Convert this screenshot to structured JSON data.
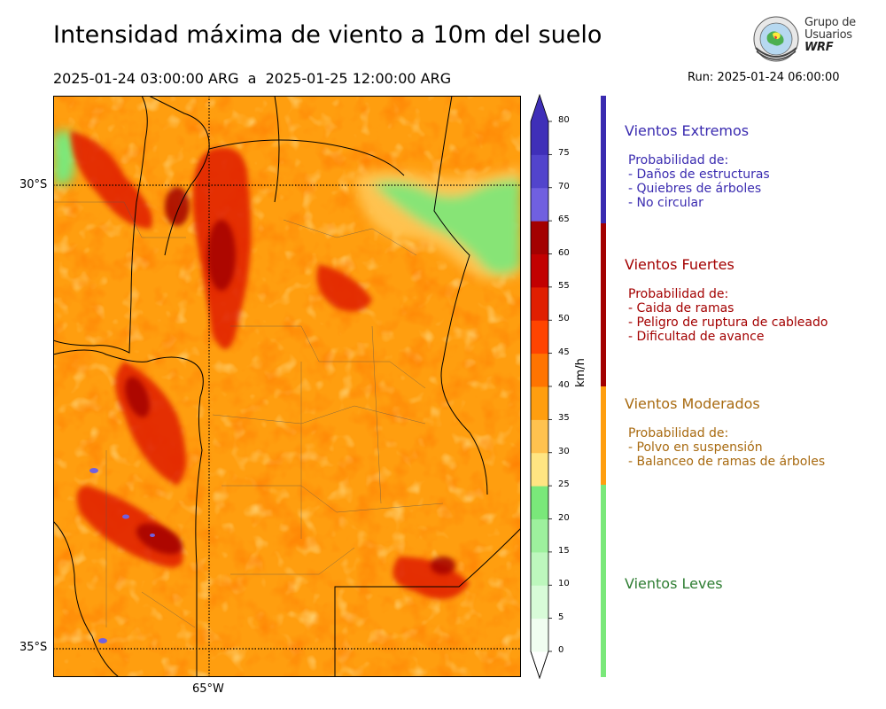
{
  "header": {
    "title": "Intensidad máxima de viento a 10m del suelo",
    "period": "2025-01-24 03:00:00 ARG  a  2025-01-25 12:00:00 ARG",
    "run": "Run: 2025-01-24 06:00:00"
  },
  "logo": {
    "line1": "Grupo de",
    "line2": "Usuarios",
    "line3": "WRF"
  },
  "map": {
    "lat_ticks": [
      "30°S",
      "35°S"
    ],
    "lon_ticks": [
      "65°W"
    ],
    "extent": {
      "lon": [
        -66.6,
        -61.8
      ],
      "lat": [
        -35.3,
        -29.3
      ]
    },
    "variable_unit": "km/h"
  },
  "colorbar": {
    "label": "km/h",
    "ticks": [
      "0",
      "5",
      "10",
      "15",
      "20",
      "25",
      "30",
      "35",
      "40",
      "45",
      "50",
      "55",
      "60",
      "65",
      "70",
      "75",
      "80"
    ],
    "colors": [
      "#f0fdf0",
      "#d8fbd8",
      "#bdf7bd",
      "#9df09d",
      "#7ae87a",
      "#ffe582",
      "#ffc24f",
      "#ff9e0f",
      "#ff7400",
      "#ff4400",
      "#e01f00",
      "#c20000",
      "#a30000",
      "#7060e0",
      "#5244cc",
      "#3f2fb8"
    ],
    "over_color": "#3f2fb8",
    "under_color": "#ffffff"
  },
  "categories": [
    {
      "title": "Vientos Extremos",
      "color": "#3a2bb0",
      "text_color": "#3a2bb0",
      "desc": [
        "Probabilidad de:",
        "- Daños de estructuras",
        "- Quiebres de árboles",
        "- No circular"
      ]
    },
    {
      "title": "Vientos Fuertes",
      "color": "#a30000",
      "text_color": "#a30000",
      "desc": [
        "Probabilidad de:",
        "- Caida de ramas",
        "- Peligro de ruptura de cableado",
        "- Dificultad de avance"
      ]
    },
    {
      "title": "Vientos Moderados",
      "color": "#ff9e0f",
      "text_color": "#a86a10",
      "desc": [
        "Probabilidad de:",
        "- Polvo en suspensión",
        "- Balanceo de ramas de árboles"
      ]
    },
    {
      "title": "Vientos Leves",
      "color": "#7ae87a",
      "text_color": "#2e7d32",
      "desc": []
    }
  ]
}
